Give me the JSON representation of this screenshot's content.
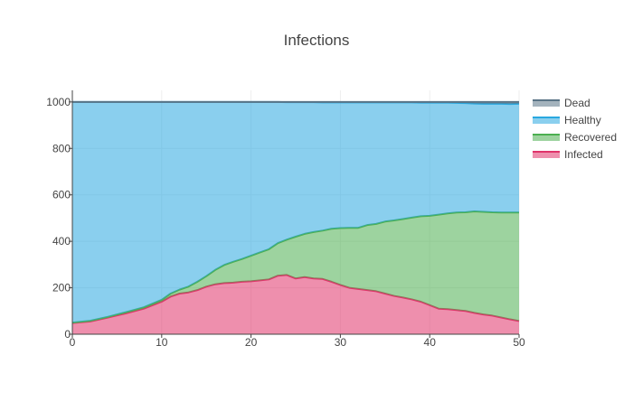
{
  "chart_data": {
    "type": "area",
    "title": "Infections",
    "xlabel": "",
    "ylabel": "",
    "stacked": true,
    "xlim": [
      0,
      50
    ],
    "ylim": [
      0,
      1050
    ],
    "x_ticks": [
      0,
      10,
      20,
      30,
      40,
      50
    ],
    "y_ticks": [
      0,
      200,
      400,
      600,
      800,
      1000
    ],
    "grid": true,
    "legend_position": "right",
    "x": [
      0,
      2,
      4,
      6,
      8,
      10,
      11,
      12,
      13,
      14,
      15,
      16,
      17,
      18,
      19,
      20,
      21,
      22,
      23,
      24,
      25,
      26,
      27,
      28,
      29,
      30,
      31,
      32,
      33,
      34,
      35,
      36,
      37,
      38,
      39,
      40,
      41,
      42,
      43,
      44,
      45,
      46,
      47,
      48,
      49,
      50
    ],
    "series": [
      {
        "name": "Infected",
        "color": "#e0336a",
        "values": [
          48,
          55,
          72,
          90,
          110,
          140,
          162,
          175,
          180,
          190,
          205,
          215,
          220,
          222,
          226,
          228,
          232,
          236,
          252,
          255,
          240,
          246,
          240,
          238,
          226,
          212,
          200,
          195,
          190,
          185,
          175,
          165,
          158,
          150,
          140,
          125,
          110,
          108,
          104,
          100,
          92,
          85,
          80,
          72,
          64,
          57
        ]
      },
      {
        "name": "Recovered",
        "color": "#4caf50",
        "values": [
          2,
          3,
          3,
          5,
          6,
          8,
          13,
          17,
          25,
          36,
          45,
          62,
          78,
          90,
          98,
          110,
          120,
          130,
          140,
          152,
          180,
          186,
          200,
          208,
          228,
          245,
          258,
          263,
          280,
          290,
          310,
          325,
          338,
          352,
          368,
          385,
          405,
          412,
          420,
          425,
          437,
          442,
          445,
          452,
          460,
          467
        ]
      },
      {
        "name": "Healthy",
        "color": "#29a8e0",
        "values": [
          950,
          942,
          925,
          905,
          884,
          852,
          825,
          808,
          795,
          774,
          750,
          723,
          702,
          688,
          676,
          662,
          648,
          634,
          608,
          592,
          579,
          567,
          559,
          552,
          544,
          541,
          540,
          540,
          528,
          523,
          513,
          508,
          502,
          496,
          489,
          487,
          482,
          477,
          472,
          470,
          464,
          465,
          467,
          468,
          467,
          468
        ]
      },
      {
        "name": "Dead",
        "color": "#5a7486",
        "values": [
          0,
          0,
          0,
          0,
          0,
          0,
          0,
          0,
          0,
          0,
          0,
          0,
          0,
          0,
          0,
          0,
          0,
          0,
          0,
          1,
          1,
          1,
          1,
          2,
          2,
          2,
          2,
          2,
          2,
          2,
          2,
          2,
          2,
          2,
          3,
          3,
          3,
          3,
          4,
          5,
          7,
          8,
          8,
          8,
          9,
          8
        ]
      }
    ]
  },
  "legend": {
    "items": [
      {
        "name": "Dead",
        "color": "#5a7486"
      },
      {
        "name": "Healthy",
        "color": "#29a8e0"
      },
      {
        "name": "Recovered",
        "color": "#4caf50"
      },
      {
        "name": "Infected",
        "color": "#e0336a"
      }
    ]
  }
}
